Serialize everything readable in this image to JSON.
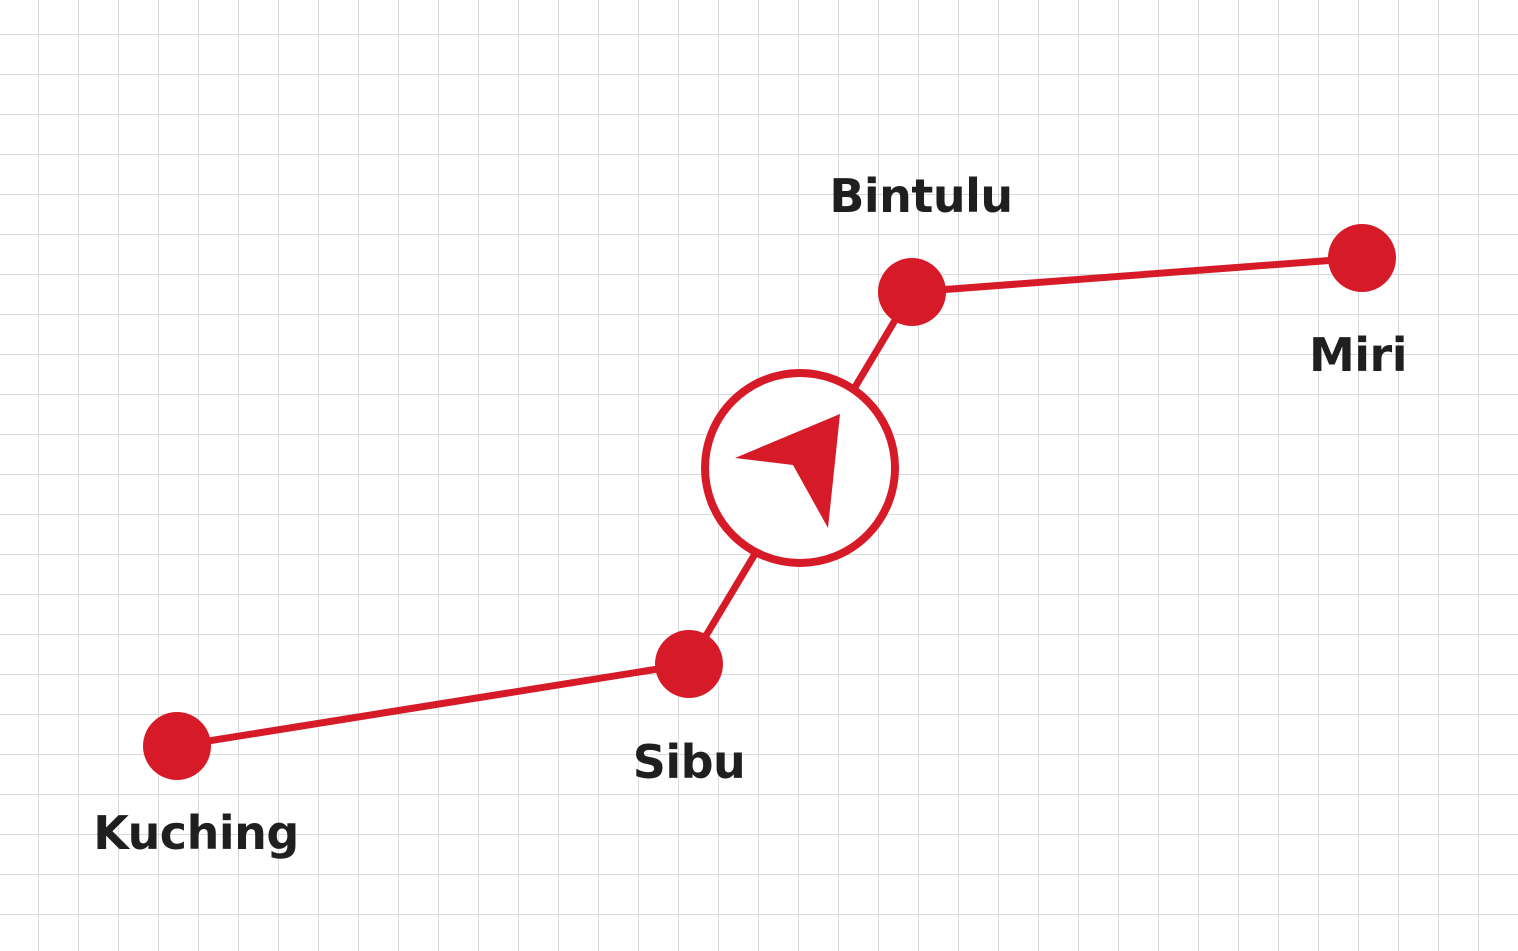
{
  "colors": {
    "route": "#d71a28",
    "label": "#1f1f1f",
    "grid": "#d9d9d9",
    "background": "#ffffff"
  },
  "route": {
    "stops": [
      {
        "id": "kuching",
        "name": "Kuching"
      },
      {
        "id": "sibu",
        "name": "Sibu"
      },
      {
        "id": "bintulu",
        "name": "Bintulu"
      },
      {
        "id": "miri",
        "name": "Miri"
      }
    ]
  },
  "navigation_marker": {
    "icon": "navigation-arrow-icon"
  }
}
